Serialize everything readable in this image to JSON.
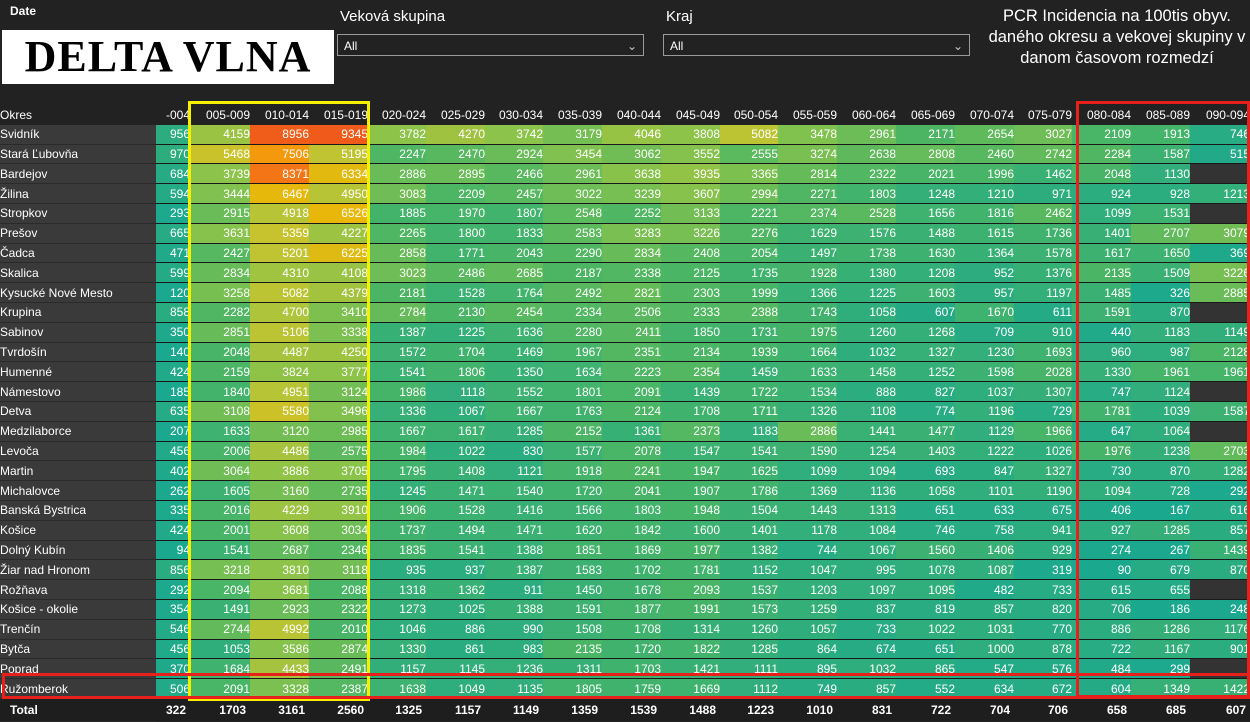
{
  "filters": {
    "date_label": "Date",
    "title_box": "DELTA VLNA",
    "age_group_label": "Veková skupina",
    "age_group_value": "All",
    "region_label": "Kraj",
    "region_value": "All",
    "pcr_title": "PCR Incidencia na 100tis obyv. daného okresu a vekovej skupiny v danom časovom rozmedzí"
  },
  "chart_data": {
    "type": "heatmap",
    "row_header": "Okres",
    "columns": [
      "-004",
      "005-009",
      "010-014",
      "015-019",
      "020-024",
      "025-029",
      "030-034",
      "035-039",
      "040-044",
      "045-049",
      "050-054",
      "055-059",
      "060-064",
      "065-069",
      "070-074",
      "075-079",
      "080-084",
      "085-089",
      "090-094"
    ],
    "rows": [
      {
        "name": "Svidník",
        "values": [
          956,
          4159,
          8956,
          9345,
          3782,
          4270,
          3742,
          3179,
          4046,
          3808,
          5082,
          3478,
          2961,
          2171,
          2654,
          3027,
          2109,
          1913,
          746
        ]
      },
      {
        "name": "Stará Ľubovňa",
        "values": [
          970,
          5468,
          7506,
          5195,
          2247,
          2470,
          2924,
          3454,
          3062,
          3552,
          2555,
          3274,
          2638,
          2808,
          2460,
          2742,
          2284,
          1587,
          515
        ]
      },
      {
        "name": "Bardejov",
        "values": [
          684,
          3739,
          8371,
          6334,
          2886,
          2895,
          2466,
          2961,
          3638,
          3935,
          3365,
          2814,
          2322,
          2021,
          1996,
          1462,
          2048,
          1130,
          null
        ]
      },
      {
        "name": "Žilina",
        "values": [
          594,
          3444,
          6467,
          4950,
          3083,
          2209,
          2457,
          3022,
          3239,
          3607,
          2994,
          2271,
          1803,
          1248,
          1210,
          971,
          924,
          928,
          1213
        ]
      },
      {
        "name": "Stropkov",
        "values": [
          293,
          2915,
          4918,
          6526,
          1885,
          1970,
          1807,
          2548,
          2252,
          3133,
          2221,
          2374,
          2528,
          1656,
          1816,
          2462,
          1099,
          1531,
          null
        ]
      },
      {
        "name": "Prešov",
        "values": [
          665,
          3631,
          5359,
          4227,
          2265,
          1800,
          1833,
          2583,
          3283,
          3226,
          2276,
          1629,
          1576,
          1488,
          1615,
          1736,
          1401,
          2707,
          3079
        ]
      },
      {
        "name": "Čadca",
        "values": [
          471,
          2427,
          5201,
          6225,
          2858,
          1771,
          2043,
          2290,
          2834,
          2408,
          2054,
          1497,
          1738,
          1630,
          1364,
          1578,
          1617,
          1650,
          369
        ]
      },
      {
        "name": "Skalica",
        "values": [
          599,
          2834,
          4310,
          4108,
          3023,
          2486,
          2685,
          2187,
          2338,
          2125,
          1735,
          1928,
          1380,
          1208,
          952,
          1376,
          2135,
          1509,
          3226
        ]
      },
      {
        "name": "Kysucké Nové Mesto",
        "values": [
          120,
          3258,
          5082,
          4379,
          2181,
          1528,
          1764,
          2492,
          2821,
          2303,
          1999,
          1366,
          1225,
          1603,
          957,
          1197,
          1485,
          326,
          2885
        ]
      },
      {
        "name": "Krupina",
        "values": [
          858,
          2282,
          4700,
          3410,
          2784,
          2130,
          2454,
          2334,
          2506,
          2333,
          2388,
          1743,
          1058,
          607,
          1670,
          611,
          1591,
          870,
          null
        ]
      },
      {
        "name": "Sabinov",
        "values": [
          350,
          2851,
          5106,
          3338,
          1387,
          1225,
          1636,
          2280,
          2411,
          1850,
          1731,
          1975,
          1260,
          1268,
          709,
          910,
          440,
          1183,
          1149
        ]
      },
      {
        "name": "Tvrdošín",
        "values": [
          140,
          2048,
          4487,
          4250,
          1572,
          1704,
          1469,
          1967,
          2351,
          2134,
          1939,
          1664,
          1032,
          1327,
          1230,
          1693,
          960,
          987,
          2128
        ]
      },
      {
        "name": "Humenné",
        "values": [
          424,
          2159,
          3824,
          3777,
          1541,
          1806,
          1350,
          1634,
          2223,
          2354,
          1459,
          1633,
          1458,
          1252,
          1598,
          2028,
          1330,
          1961,
          1961
        ]
      },
      {
        "name": "Námestovo",
        "values": [
          185,
          1840,
          4951,
          3124,
          1986,
          1118,
          1552,
          1801,
          2091,
          1439,
          1722,
          1534,
          888,
          827,
          1037,
          1307,
          747,
          1124,
          null
        ]
      },
      {
        "name": "Detva",
        "values": [
          635,
          3108,
          5580,
          3496,
          1336,
          1067,
          1667,
          1763,
          2124,
          1708,
          1711,
          1326,
          1108,
          774,
          1196,
          729,
          1781,
          1039,
          1587
        ]
      },
      {
        "name": "Medzilaborce",
        "values": [
          207,
          1633,
          3120,
          2985,
          1667,
          1617,
          1285,
          2152,
          1361,
          2373,
          1183,
          2886,
          1441,
          1477,
          1129,
          1966,
          647,
          1064,
          null
        ]
      },
      {
        "name": "Levoča",
        "values": [
          456,
          2006,
          4486,
          2575,
          1984,
          1022,
          830,
          1577,
          2078,
          1547,
          1541,
          1590,
          1254,
          1403,
          1222,
          1026,
          1976,
          1238,
          2703
        ]
      },
      {
        "name": "Martin",
        "values": [
          402,
          3064,
          3886,
          3705,
          1795,
          1408,
          1121,
          1918,
          2241,
          1947,
          1625,
          1099,
          1094,
          693,
          847,
          1327,
          730,
          870,
          1282
        ]
      },
      {
        "name": "Michalovce",
        "values": [
          262,
          1605,
          3160,
          2735,
          1245,
          1471,
          1540,
          1720,
          2041,
          1907,
          1786,
          1369,
          1136,
          1058,
          1101,
          1190,
          1094,
          728,
          292
        ]
      },
      {
        "name": "Banská Bystrica",
        "values": [
          335,
          2016,
          4229,
          3910,
          1906,
          1528,
          1416,
          1566,
          1803,
          1948,
          1504,
          1443,
          1313,
          651,
          633,
          675,
          406,
          167,
          616
        ]
      },
      {
        "name": "Košice",
        "values": [
          424,
          2001,
          3608,
          3034,
          1737,
          1494,
          1471,
          1620,
          1842,
          1600,
          1401,
          1178,
          1084,
          746,
          758,
          941,
          927,
          1285,
          857
        ]
      },
      {
        "name": "Dolný Kubín",
        "values": [
          94,
          1541,
          2687,
          2346,
          1835,
          1541,
          1388,
          1851,
          1869,
          1977,
          1382,
          744,
          1067,
          1560,
          1406,
          929,
          274,
          267,
          1439
        ]
      },
      {
        "name": "Žiar nad Hronom",
        "values": [
          856,
          3218,
          3810,
          3118,
          935,
          937,
          1387,
          1583,
          1702,
          1781,
          1152,
          1047,
          995,
          1078,
          1087,
          319,
          90,
          679,
          870
        ]
      },
      {
        "name": "Rožňava",
        "values": [
          292,
          2094,
          3681,
          2088,
          1318,
          1362,
          911,
          1450,
          1678,
          2093,
          1537,
          1203,
          1097,
          1095,
          482,
          733,
          615,
          655,
          null
        ]
      },
      {
        "name": "Košice - okolie",
        "values": [
          354,
          1491,
          2923,
          2322,
          1273,
          1025,
          1388,
          1591,
          1877,
          1991,
          1573,
          1259,
          837,
          819,
          857,
          820,
          706,
          186,
          248
        ]
      },
      {
        "name": "Trenčín",
        "values": [
          546,
          2744,
          4992,
          2010,
          1046,
          886,
          990,
          1508,
          1708,
          1314,
          1260,
          1057,
          733,
          1022,
          1031,
          770,
          886,
          1286,
          1176
        ]
      },
      {
        "name": "Bytča",
        "values": [
          456,
          1053,
          3586,
          2874,
          1330,
          861,
          983,
          2135,
          1720,
          1822,
          1285,
          864,
          674,
          651,
          1000,
          878,
          722,
          1167,
          901
        ]
      },
      {
        "name": "Poprad",
        "values": [
          370,
          1684,
          4433,
          2491,
          1157,
          1145,
          1236,
          1311,
          1703,
          1421,
          1111,
          895,
          1032,
          865,
          547,
          576,
          484,
          299,
          null
        ]
      },
      {
        "name": "Ružomberok",
        "values": [
          506,
          2091,
          3328,
          2387,
          1638,
          1049,
          1135,
          1805,
          1759,
          1669,
          1112,
          749,
          857,
          552,
          634,
          672,
          604,
          1349,
          1422
        ]
      }
    ],
    "total": {
      "name": "Total",
      "values": [
        322,
        1703,
        3161,
        2560,
        1325,
        1157,
        1149,
        1359,
        1539,
        1488,
        1223,
        1010,
        831,
        722,
        704,
        706,
        658,
        685,
        607
      ]
    },
    "colors": {
      "low": "#1aa88f",
      "mid": "#8bc34a",
      "high": "#f0b400",
      "max": "#f05a1a",
      "empty": "#333333"
    }
  }
}
